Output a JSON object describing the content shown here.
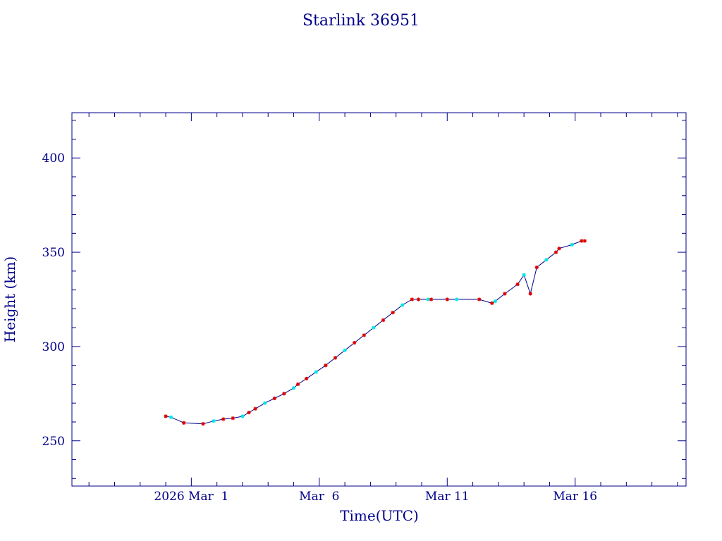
{
  "chart_data": {
    "type": "line",
    "title": "Starlink 36951",
    "xlabel": "Time(UTC)",
    "ylabel": "Height (km)",
    "xlim": [
      "2026-02-24T08:00",
      "2026-03-20T08:00"
    ],
    "ylim": [
      226,
      424
    ],
    "x_tick_labels": [
      {
        "label": "2026 Mar  1",
        "x": "2026-03-01"
      },
      {
        "label": "Mar  6",
        "x": "2026-03-06"
      },
      {
        "label": "Mar 11",
        "x": "2026-03-11"
      },
      {
        "label": "Mar 16",
        "x": "2026-03-16"
      }
    ],
    "y_ticks": [
      250,
      300,
      350,
      400
    ],
    "grid": false,
    "colors": {
      "axis": "#00008b",
      "line": "#00008b",
      "marker_a": "#dd0000",
      "marker_b": "#00e5e5"
    },
    "series": [
      {
        "x": [
          "2026-02-28T00:00",
          "2026-02-28T05:00",
          "2026-02-28T17:00",
          "2026-03-01T11:00",
          "2026-03-01T21:00",
          "2026-03-02T06:00",
          "2026-03-02T15:00",
          "2026-03-03T00:00",
          "2026-03-03T06:00",
          "2026-03-03T12:00",
          "2026-03-03T21:00",
          "2026-03-04T06:00",
          "2026-03-04T15:00",
          "2026-03-05T00:00",
          "2026-03-05T04:00",
          "2026-03-05T12:00",
          "2026-03-05T21:00",
          "2026-03-06T06:00",
          "2026-03-06T15:00",
          "2026-03-07T00:00",
          "2026-03-07T09:00",
          "2026-03-07T18:00",
          "2026-03-08T03:00",
          "2026-03-08T12:00",
          "2026-03-08T21:00",
          "2026-03-09T06:00",
          "2026-03-09T15:00",
          "2026-03-09T21:00",
          "2026-03-10T06:00",
          "2026-03-10T09:00",
          "2026-03-11T00:00",
          "2026-03-11T09:00",
          "2026-03-12T06:00",
          "2026-03-12T18:00",
          "2026-03-12T21:00",
          "2026-03-13T06:00",
          "2026-03-13T18:00",
          "2026-03-14T00:00",
          "2026-03-14T06:00",
          "2026-03-14T12:00",
          "2026-03-14T21:00",
          "2026-03-15T06:00",
          "2026-03-15T09:00",
          "2026-03-15T21:00",
          "2026-03-16T06:00",
          "2026-03-16T09:00"
        ],
        "y": [
          263,
          262.5,
          259.5,
          259,
          260.5,
          261.5,
          262,
          263,
          265,
          267,
          270,
          272.5,
          275,
          278,
          280,
          283,
          286.5,
          290,
          294,
          298,
          302,
          306,
          310,
          314,
          318,
          322,
          325,
          325,
          325,
          325,
          325,
          325,
          325,
          323,
          324,
          328,
          333,
          338,
          328,
          342,
          346,
          350,
          352,
          354,
          356,
          356
        ]
      }
    ]
  }
}
